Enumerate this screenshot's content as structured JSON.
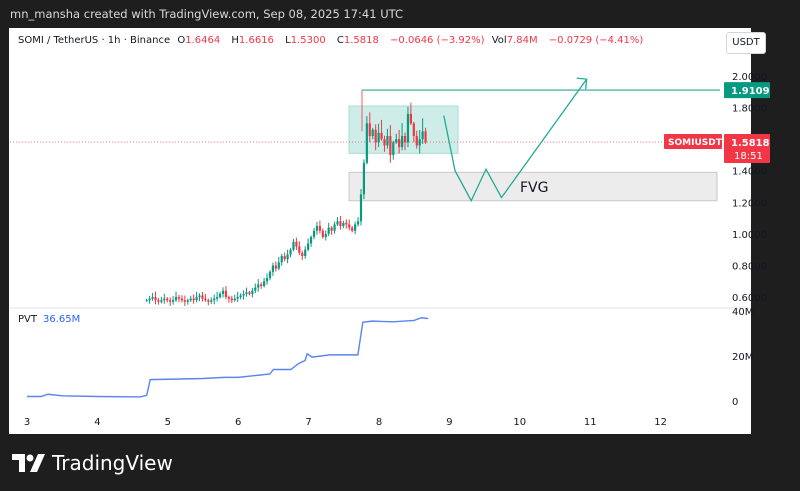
{
  "header": {
    "caption": "mn_mansha created with TradingView.com, Sep 08, 2025 17:41 UTC"
  },
  "legend": {
    "symbol": "SOMI / TetherUS · 1h · Binance",
    "o_label": "O",
    "o": "1.6464",
    "h_label": "H",
    "h": "1.6616",
    "l_label": "L",
    "l": "1.5300",
    "c_label": "C",
    "c": "1.5818",
    "change": "−0.0646 (−3.92%)",
    "vol_label": "Vol",
    "vol": "7.84M",
    "vol_change": "−0.0729 (−4.41%)"
  },
  "currency_button": "USDT",
  "price_axis": {
    "ticks": [
      "2.0000",
      "1.8000",
      "1.4000",
      "1.2000",
      "1.0000",
      "0.8000",
      "0.6000"
    ],
    "tick_values": [
      2.0,
      1.8,
      1.4,
      1.2,
      1.0,
      0.8,
      0.6
    ]
  },
  "target_label": "1.9109",
  "target_price": 1.9109,
  "symbol_tag": "SOMIUSDT",
  "last_price": "1.5818",
  "last_price_value": 1.5818,
  "countdown": "18:51",
  "fvg_label": "FVG",
  "pvt": {
    "label": "PVT",
    "value": "36.65M",
    "axis": [
      "40M",
      "20M",
      "0"
    ],
    "axis_values": [
      40,
      20,
      0
    ]
  },
  "time_axis": {
    "labels": [
      "3",
      "4",
      "5",
      "6",
      "7",
      "8",
      "9",
      "10",
      "11",
      "12"
    ]
  },
  "colors": {
    "up": "#089981",
    "down": "#f23645",
    "drawing": "#22ab94",
    "pvt": "#2962ff"
  },
  "chart_data": {
    "type": "candlestick",
    "start_day": 4.7,
    "candle_days": 0.0417,
    "closes": [
      0.58,
      0.59,
      0.6,
      0.58,
      0.57,
      0.58,
      0.59,
      0.58,
      0.57,
      0.58,
      0.6,
      0.59,
      0.58,
      0.57,
      0.58,
      0.59,
      0.58,
      0.6,
      0.61,
      0.59,
      0.58,
      0.57,
      0.58,
      0.59,
      0.6,
      0.62,
      0.64,
      0.6,
      0.59,
      0.58,
      0.59,
      0.6,
      0.61,
      0.62,
      0.63,
      0.62,
      0.64,
      0.66,
      0.68,
      0.67,
      0.7,
      0.72,
      0.76,
      0.8,
      0.78,
      0.82,
      0.86,
      0.84,
      0.87,
      0.9,
      0.95,
      0.92,
      0.88,
      0.86,
      0.9,
      0.94,
      0.98,
      1.02,
      1.05,
      1.02,
      0.98,
      1.0,
      1.04,
      1.02,
      1.06,
      1.08,
      1.05,
      1.07,
      1.06,
      1.04,
      1.02,
      1.06,
      1.08,
      1.25,
      1.45,
      1.7,
      1.62,
      1.66,
      1.58,
      1.64,
      1.6,
      1.56,
      1.62,
      1.5,
      1.58,
      1.6,
      1.55,
      1.62,
      1.58,
      1.76,
      1.7,
      1.62,
      1.56,
      1.6,
      1.65,
      1.58
    ],
    "pvt_series": [
      [
        3.0,
        2
      ],
      [
        3.2,
        2
      ],
      [
        3.3,
        3
      ],
      [
        3.5,
        2.3
      ],
      [
        4.0,
        2
      ],
      [
        4.6,
        1.8
      ],
      [
        4.7,
        2.5
      ],
      [
        4.75,
        9.5
      ],
      [
        5.5,
        10
      ],
      [
        5.8,
        10.5
      ],
      [
        6.0,
        10.5
      ],
      [
        6.3,
        11.5
      ],
      [
        6.45,
        12
      ],
      [
        6.5,
        14
      ],
      [
        6.75,
        14
      ],
      [
        6.85,
        16.5
      ],
      [
        6.95,
        18
      ],
      [
        6.98,
        21
      ],
      [
        7.05,
        19.5
      ],
      [
        7.3,
        20.5
      ],
      [
        7.7,
        20.5
      ],
      [
        7.77,
        35
      ],
      [
        7.9,
        35.5
      ],
      [
        8.2,
        35.2
      ],
      [
        8.5,
        35.8
      ],
      [
        8.6,
        37
      ],
      [
        8.7,
        36.65
      ]
    ],
    "zones": {
      "range_box": [
        1.51,
        1.81
      ],
      "fvg_box": [
        1.21,
        1.39
      ]
    },
    "projection_path": [
      [
        8.92,
        1.75
      ],
      [
        9.08,
        1.4
      ],
      [
        9.31,
        1.21
      ],
      [
        9.52,
        1.41
      ],
      [
        9.74,
        1.23
      ],
      [
        10.95,
        1.98
      ]
    ]
  }
}
